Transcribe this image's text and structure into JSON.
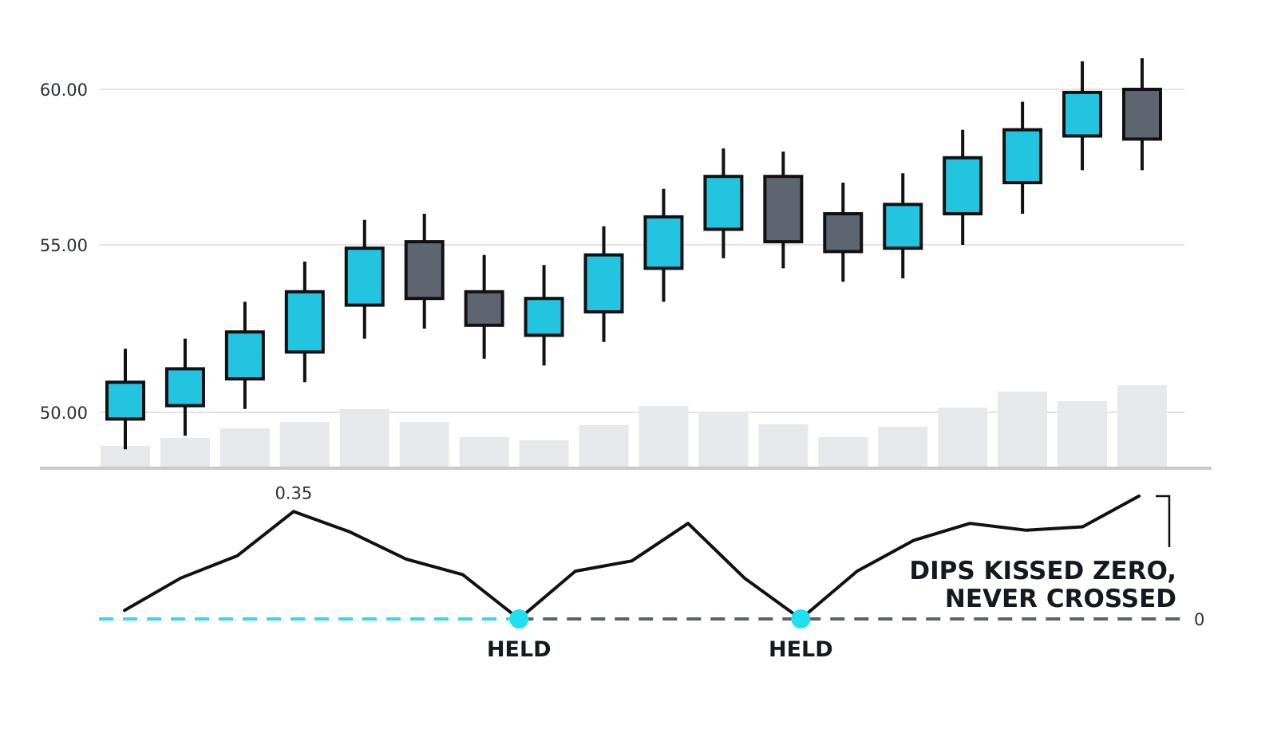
{
  "chart_data": [
    {
      "type": "candlestick",
      "y_ticks": [
        "60.00",
        "55.00",
        "50.00"
      ],
      "y_tick_values": [
        60,
        55,
        50
      ],
      "grid": true,
      "up_color": "#22c4e0",
      "down_color": "#5f6570",
      "volume_color": "#e6e8eb",
      "candles": [
        {
          "open": 49.8,
          "high": 51.9,
          "low": 48.9,
          "close": 50.9
        },
        {
          "open": 50.2,
          "high": 52.2,
          "low": 49.3,
          "close": 51.3
        },
        {
          "open": 51.0,
          "high": 53.3,
          "low": 50.1,
          "close": 52.4
        },
        {
          "open": 51.8,
          "high": 54.5,
          "low": 50.9,
          "close": 53.6
        },
        {
          "open": 53.2,
          "high": 55.8,
          "low": 52.2,
          "close": 54.9
        },
        {
          "open": 55.1,
          "high": 56.0,
          "low": 52.5,
          "close": 53.4
        },
        {
          "open": 53.6,
          "high": 54.7,
          "low": 51.6,
          "close": 52.6
        },
        {
          "open": 52.3,
          "high": 54.4,
          "low": 51.4,
          "close": 53.4
        },
        {
          "open": 53.0,
          "high": 55.6,
          "low": 52.1,
          "close": 54.7
        },
        {
          "open": 54.3,
          "high": 56.8,
          "low": 53.3,
          "close": 55.9
        },
        {
          "open": 55.5,
          "high": 58.1,
          "low": 54.6,
          "close": 57.2
        },
        {
          "open": 57.2,
          "high": 58.0,
          "low": 54.3,
          "close": 55.1
        },
        {
          "open": 56.0,
          "high": 57.0,
          "low": 53.9,
          "close": 54.8
        },
        {
          "open": 54.9,
          "high": 57.3,
          "low": 54.0,
          "close": 56.3
        },
        {
          "open": 56.0,
          "high": 58.7,
          "low": 55.0,
          "close": 57.8
        },
        {
          "open": 57.0,
          "high": 59.6,
          "low": 56.0,
          "close": 58.7
        },
        {
          "open": 58.5,
          "high": 60.9,
          "low": 57.4,
          "close": 59.9
        },
        {
          "open": 60.0,
          "high": 61.0,
          "low": 57.4,
          "close": 58.4
        }
      ],
      "volume": [
        26,
        36,
        48,
        56,
        72,
        56,
        37,
        33,
        52,
        76,
        69,
        53,
        37,
        50,
        74,
        94,
        82,
        102
      ]
    },
    {
      "type": "line",
      "baseline_label": "0",
      "peak_label": "0.35",
      "values": [
        0.05,
        0.24,
        0.37,
        0.63,
        0.51,
        0.35,
        0.26,
        0.0,
        0.28,
        0.34,
        0.56,
        0.24,
        0.0,
        0.28,
        0.46,
        0.56,
        0.52,
        0.54,
        0.72
      ],
      "y_range": [
        0,
        0.72
      ],
      "zero_touches": [
        7,
        12
      ],
      "touch_label": "HELD",
      "annotation": [
        "DIPS KISSED ZERO,",
        "NEVER CROSSED"
      ],
      "line_color": "#111111",
      "zero_line_color_left": "#33d9ee",
      "zero_line_color_right": "#5a616c",
      "marker_color": "#1fe0ee"
    }
  ]
}
